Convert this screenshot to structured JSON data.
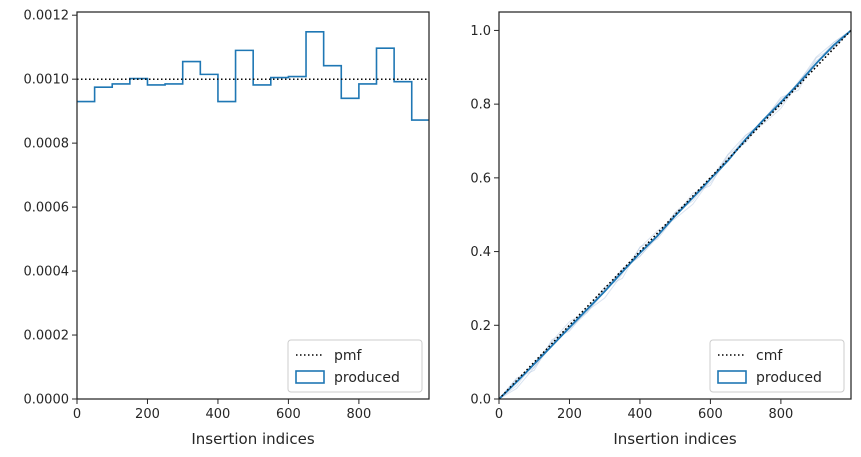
{
  "chart_data": [
    {
      "type": "line",
      "title": "",
      "xlabel": "Insertion indices",
      "ylabel": "",
      "xlim": [
        0,
        999
      ],
      "ylim": [
        0,
        0.00121
      ],
      "xticks": [
        0,
        200,
        400,
        600,
        800
      ],
      "xtick_labels": [
        "0",
        "200",
        "400",
        "600",
        "800"
      ],
      "yticks": [
        0,
        0.0002,
        0.0004,
        0.0006,
        0.0008,
        0.001,
        0.0012
      ],
      "ytick_labels": [
        "0.0000",
        "0.0002",
        "0.0004",
        "0.0006",
        "0.0008",
        "0.0010",
        "0.0012"
      ],
      "grid": false,
      "legend_position": "lower-right",
      "series": [
        {
          "name": "pmf",
          "style": "dotted",
          "color": "#000000",
          "x": [
            0,
            999
          ],
          "y": [
            0.001,
            0.001
          ]
        },
        {
          "name": "produced",
          "style": "step",
          "color": "#1f77b4",
          "bin_edges": [
            0,
            50,
            100,
            150,
            200,
            250,
            300,
            350,
            400,
            450,
            500,
            550,
            600,
            650,
            700,
            750,
            800,
            850,
            900,
            950,
            1000
          ],
          "values": [
            0.00093,
            0.000975,
            0.000985,
            0.001002,
            0.000982,
            0.000985,
            0.001055,
            0.001015,
            0.00093,
            0.00109,
            0.000982,
            0.001005,
            0.001008,
            0.001148,
            0.001042,
            0.00094,
            0.000985,
            0.001097,
            0.000992,
            0.000872
          ]
        }
      ]
    },
    {
      "type": "line",
      "title": "",
      "xlabel": "Insertion indices",
      "ylabel": "",
      "xlim": [
        0,
        999
      ],
      "ylim": [
        0,
        1.05
      ],
      "xticks": [
        0,
        200,
        400,
        600,
        800
      ],
      "xtick_labels": [
        "0",
        "200",
        "400",
        "600",
        "800"
      ],
      "yticks": [
        0,
        0.2,
        0.4,
        0.6,
        0.8,
        1.0
      ],
      "ytick_labels": [
        "0.0",
        "0.2",
        "0.4",
        "0.6",
        "0.8",
        "1.0"
      ],
      "grid": false,
      "legend_position": "lower-right",
      "series": [
        {
          "name": "cmf",
          "style": "dotted",
          "color": "#000000",
          "x": [
            0,
            999
          ],
          "y": [
            0,
            1.0
          ]
        },
        {
          "name": "produced",
          "style": "line",
          "color": "#1f77b4",
          "x": [
            0,
            50,
            100,
            150,
            200,
            250,
            300,
            350,
            400,
            450,
            500,
            550,
            600,
            650,
            700,
            750,
            800,
            850,
            900,
            950,
            999
          ],
          "y": [
            0,
            0.046,
            0.095,
            0.144,
            0.194,
            0.243,
            0.292,
            0.345,
            0.396,
            0.443,
            0.497,
            0.546,
            0.597,
            0.647,
            0.705,
            0.757,
            0.805,
            0.856,
            0.91,
            0.96,
            1.0
          ]
        }
      ],
      "band_color": "#b0c4de"
    }
  ]
}
